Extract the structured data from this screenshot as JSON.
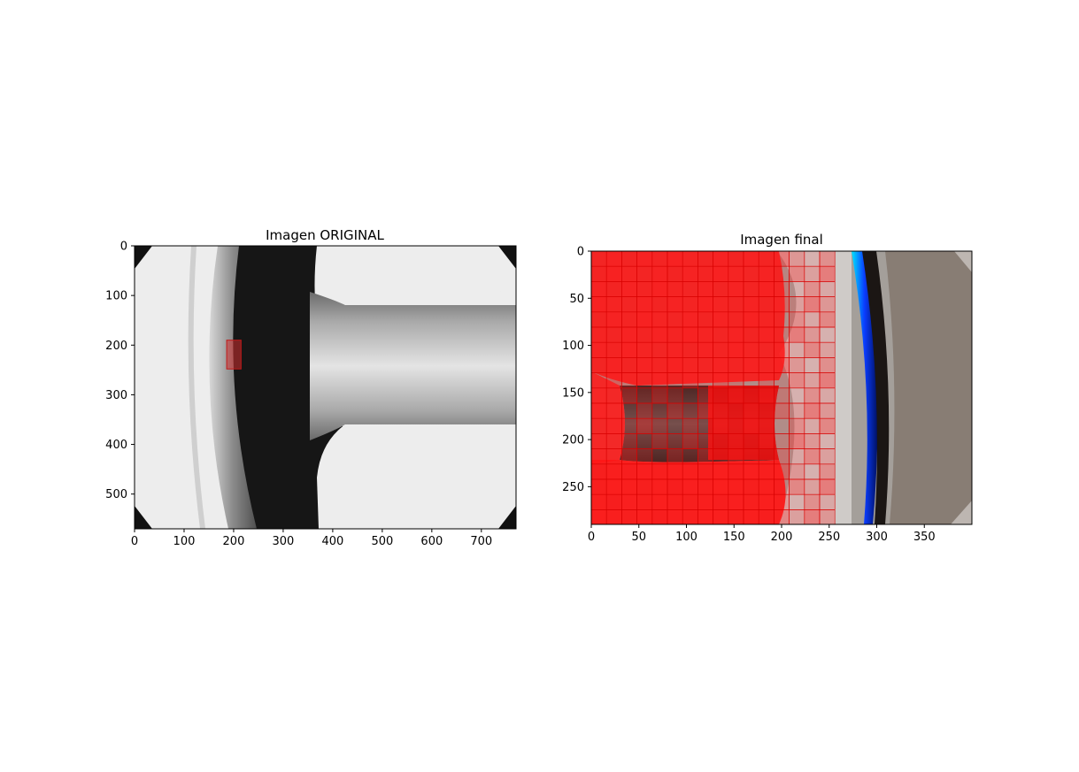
{
  "chart_data": [
    {
      "type": "image",
      "title": "Imagen ORIGINAL",
      "xlim": [
        0,
        770
      ],
      "ylim": [
        570,
        0
      ],
      "xticks": [
        0,
        100,
        200,
        300,
        400,
        500,
        600,
        700
      ],
      "yticks": [
        0,
        100,
        200,
        300,
        400,
        500
      ],
      "highlight_rect": {
        "x0": 186,
        "y0": 190,
        "x1": 215,
        "y1": 248
      }
    },
    {
      "type": "image",
      "title": "Imagen final",
      "xlim": [
        0,
        400
      ],
      "ylim": [
        290,
        0
      ],
      "xticks": [
        0,
        50,
        100,
        150,
        200,
        250,
        300,
        350
      ],
      "yticks": [
        0,
        50,
        100,
        150,
        200,
        250
      ]
    }
  ]
}
